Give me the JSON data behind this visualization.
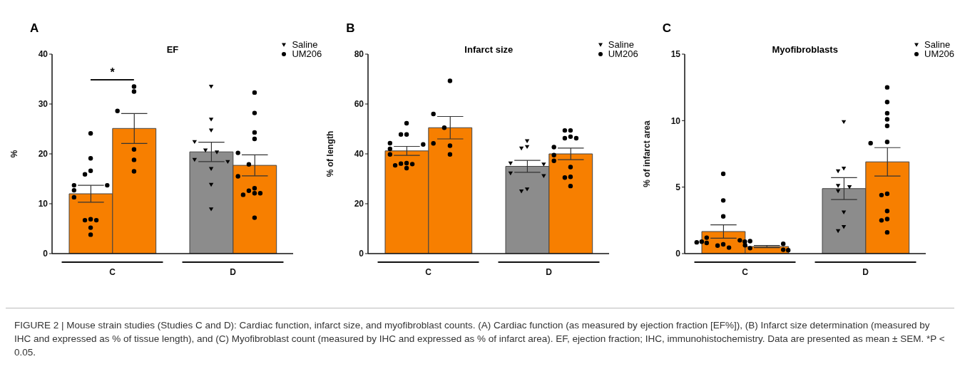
{
  "chart_data": [
    {
      "type": "bar",
      "title": "EF",
      "ylabel": "%",
      "categories": [
        "C",
        "D"
      ],
      "ylim": [
        0,
        40
      ],
      "yticks": [
        0,
        10,
        20,
        30,
        40
      ],
      "legend": "top right",
      "grid": false,
      "annotations": [
        "A",
        "*",
        "FIGURE 2 | Mouse strain studies (Studies C and D): Cardiac function, infarct size, and myofibroblast counts. (A) Cardiac function (as measured by ejection fraction [EF%]), (B) Infarct size determination (measured by IHC and expressed as % of tissue length), and (C) Myofibroblast count (measured by IHC and expressed as % of infarct area). EF, ejection fraction; IHC, immunohistochemistry. Data are presented as mean ± SEM. *P < 0.05."
      ],
      "series": [
        {
          "colors": [
            "#f77f00",
            "#8c8c8c"
          ],
          "values": [
            12,
            20.4
          ],
          "errors": [
            1.7,
            1.95
          ]
        },
        {
          "color": "#f77f00",
          "values": [
            25.1,
            17.7
          ],
          "errors": [
            3,
            2.1
          ]
        },
        {
          "type": "scatter",
          "marker": "circle",
          "color": "#000000",
          "x": [
            "C",
            "C",
            "C",
            "C",
            "C",
            "C",
            "C",
            "C",
            "C",
            "C",
            "C",
            "C",
            "C"
          ],
          "values": [
            24.1,
            19.1,
            16.6,
            15.9,
            13.7,
            13.7,
            12.7,
            11.3,
            6.9,
            6.7,
            6.7,
            5.2,
            3.8
          ]
        },
        {
          "type": "scatter",
          "name": "Saline",
          "marker": "triangle",
          "color": "#000000",
          "x": [
            "D",
            "D",
            "D",
            "D",
            "D",
            "D",
            "D",
            "D",
            "D",
            "D",
            "D"
          ],
          "values": [
            33.5,
            26.9,
            24.7,
            22.4,
            20.7,
            20.3,
            18.8,
            18.4,
            17,
            13.8,
            8.9
          ]
        },
        {
          "type": "scatter",
          "name": "UM206",
          "marker": "circle",
          "color": "#000000",
          "x": [
            "C",
            "C",
            "C",
            "C",
            "C",
            "C",
            "D",
            "D",
            "D",
            "D",
            "D",
            "D",
            "D",
            "D",
            "D",
            "D",
            "D",
            "D",
            "D"
          ],
          "values": [
            33.5,
            32.5,
            28.6,
            20.9,
            18.8,
            16.5,
            32.3,
            28.2,
            24.3,
            23,
            20.2,
            17.9,
            15.5,
            13.1,
            12.6,
            12.1,
            12.1,
            11.8,
            7.2
          ]
        }
      ]
    },
    {
      "type": "bar",
      "title": "Infarct size",
      "ylabel": "% of length",
      "categories": [
        "C",
        "D"
      ],
      "ylim": [
        0,
        80
      ],
      "yticks": [
        0,
        20,
        40,
        60,
        80
      ],
      "legend": "top right",
      "grid": false,
      "annotations": [
        "B"
      ],
      "series": [
        {
          "colors": [
            "#f77f00",
            "#8c8c8c"
          ],
          "values": [
            41.2,
            35
          ],
          "errors": [
            1.8,
            2.4
          ]
        },
        {
          "color": "#f77f00",
          "values": [
            50.5,
            40
          ],
          "errors": [
            4.5,
            2.3
          ]
        },
        {
          "type": "scatter",
          "marker": "circle",
          "color": "#000000",
          "x": [
            "C",
            "C",
            "C",
            "C",
            "C",
            "C",
            "C",
            "C",
            "C",
            "C",
            "C",
            "C"
          ],
          "values": [
            52.3,
            47.8,
            47.8,
            44.3,
            43.8,
            42,
            39.8,
            36.3,
            36.1,
            35.9,
            35.4,
            34.3
          ]
        },
        {
          "type": "scatter",
          "name": "Saline",
          "marker": "triangle",
          "color": "#000000",
          "x": [
            "D",
            "D",
            "D",
            "D",
            "D",
            "D",
            "D",
            "D",
            "D"
          ],
          "values": [
            45.1,
            42.8,
            42.2,
            36.2,
            35.8,
            32.2,
            31.1,
            25.8,
            25
          ]
        },
        {
          "type": "scatter",
          "name": "UM206",
          "marker": "circle",
          "color": "#000000",
          "x": [
            "C",
            "C",
            "C",
            "C",
            "C",
            "C",
            "D",
            "D",
            "D",
            "D",
            "D",
            "D",
            "D",
            "D",
            "D",
            "D",
            "D",
            "D"
          ],
          "values": [
            69.3,
            56,
            50.5,
            44.2,
            43.3,
            39.8,
            49.4,
            49.4,
            46.9,
            46.3,
            46.3,
            42.7,
            39.5,
            37.2,
            34.7,
            30.8,
            30.5,
            27.1
          ]
        }
      ]
    },
    {
      "type": "bar",
      "title": "Myofibroblasts",
      "ylabel": "% of infarct area",
      "categories": [
        "C",
        "D"
      ],
      "ylim": [
        0,
        15
      ],
      "yticks": [
        0,
        5,
        10,
        15
      ],
      "legend": "top right",
      "grid": false,
      "annotations": [
        "C"
      ],
      "series": [
        {
          "colors": [
            "#f77f00",
            "#8c8c8c"
          ],
          "values": [
            1.66,
            4.89
          ],
          "errors": [
            0.5,
            0.82
          ]
        },
        {
          "color": "#f77f00",
          "values": [
            0.53,
            6.9
          ],
          "errors": [
            0.08,
            1.07
          ]
        },
        {
          "type": "scatter",
          "marker": "circle",
          "color": "#000000",
          "x": [
            "C",
            "C",
            "C",
            "C",
            "C",
            "C",
            "C",
            "C",
            "C",
            "C",
            "C",
            "C"
          ],
          "values": [
            6,
            4,
            2.8,
            1.2,
            1,
            0.9,
            0.9,
            0.85,
            0.8,
            0.7,
            0.6,
            0.45
          ]
        },
        {
          "type": "scatter",
          "name": "Saline",
          "marker": "triangle",
          "color": "#000000",
          "x": [
            "D",
            "D",
            "D",
            "D",
            "D",
            "D",
            "D",
            "D",
            "D"
          ],
          "values": [
            9.9,
            6.4,
            6.2,
            5.1,
            5,
            4.7,
            3.1,
            2,
            1.7
          ]
        },
        {
          "type": "scatter",
          "name": "UM206",
          "marker": "circle",
          "color": "#000000",
          "x": [
            "C",
            "C",
            "C",
            "C",
            "C",
            "C",
            "D",
            "D",
            "D",
            "D",
            "D",
            "D",
            "D",
            "D",
            "D",
            "D",
            "D",
            "D",
            "D"
          ],
          "values": [
            0.94,
            0.74,
            0.63,
            0.41,
            0.29,
            0.26,
            12.5,
            11.4,
            10.55,
            10.1,
            9.6,
            8.4,
            8.3,
            4.5,
            4.4,
            3.2,
            2.6,
            2.5,
            1.6
          ]
        }
      ]
    }
  ]
}
